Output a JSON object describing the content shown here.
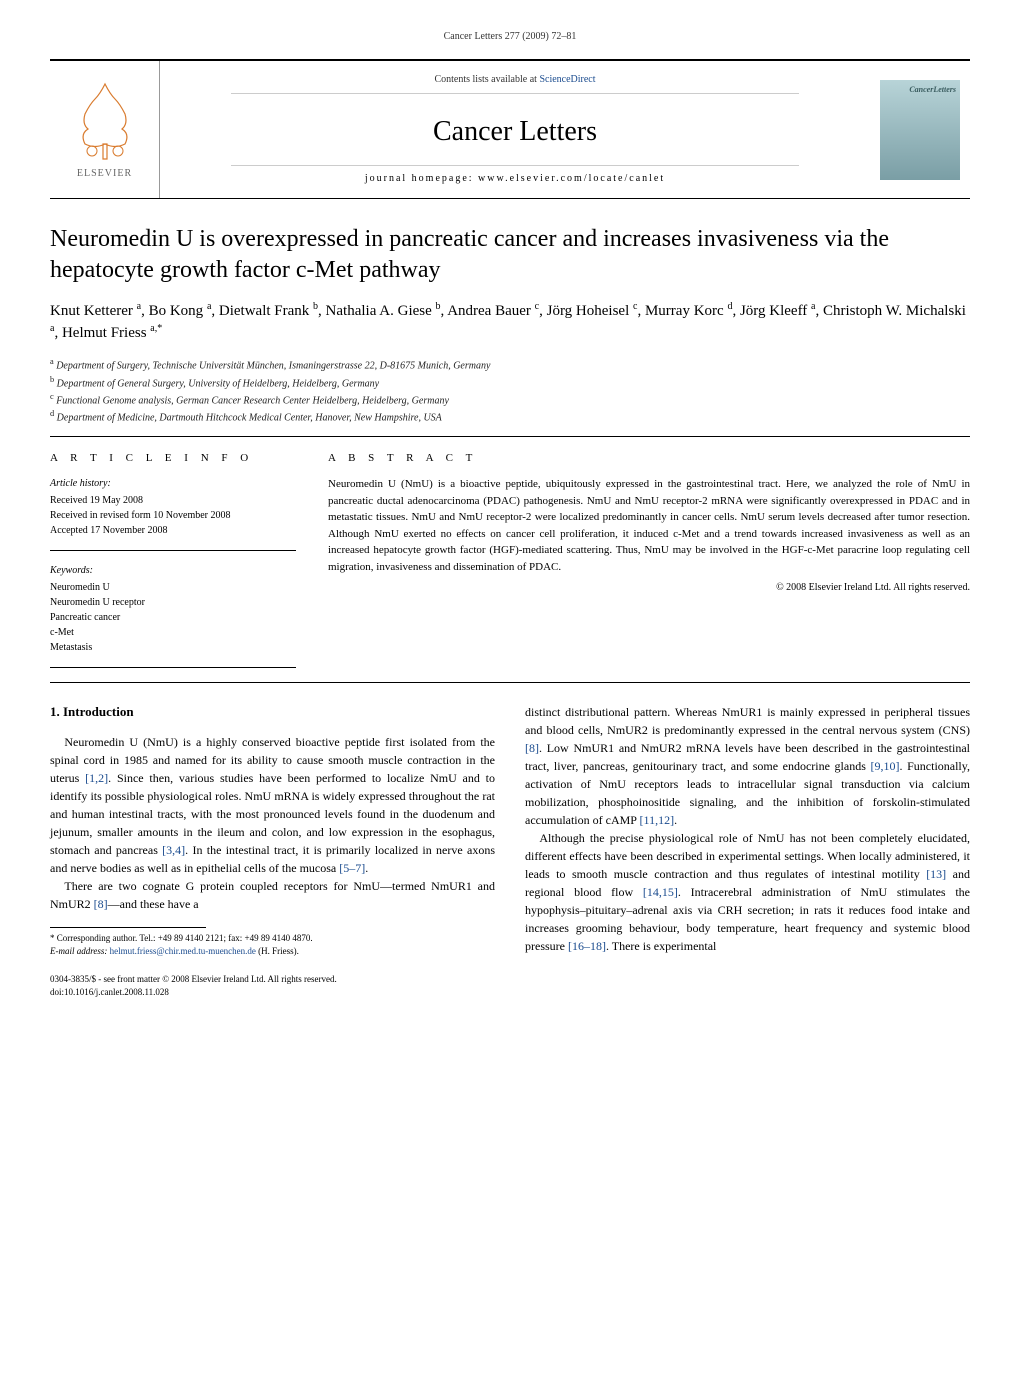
{
  "runningHeader": "Cancer Letters 277 (2009) 72–81",
  "header": {
    "contentsPrefix": "Contents lists available at ",
    "contentsLinkText": "ScienceDirect",
    "journalName": "Cancer Letters",
    "homepageLabel": "journal homepage: www.elsevier.com/locate/canlet",
    "publisherText": "ELSEVIER",
    "coverLabel": "CancerLetters"
  },
  "title": "Neuromedin U is overexpressed in pancreatic cancer and increases invasiveness via the hepatocyte growth factor c-Met pathway",
  "authorsHtml": "Knut Ketterer <sup>a</sup>, Bo Kong <sup>a</sup>, Dietwalt Frank <sup>b</sup>, Nathalia A. Giese <sup>b</sup>, Andrea Bauer <sup>c</sup>, Jörg Hoheisel <sup>c</sup>, Murray Korc <sup>d</sup>, Jörg Kleeff <sup>a</sup>, Christoph W. Michalski <sup>a</sup>, Helmut Friess <sup>a,*</sup>",
  "affiliations": {
    "a": "Department of Surgery, Technische Universität München, Ismaningerstrasse 22, D-81675 Munich, Germany",
    "b": "Department of General Surgery, University of Heidelberg, Heidelberg, Germany",
    "c": "Functional Genome analysis, German Cancer Research Center Heidelberg, Heidelberg, Germany",
    "d": "Department of Medicine, Dartmouth Hitchcock Medical Center, Hanover, New Hampshire, USA"
  },
  "articleInfo": {
    "label": "A R T I C L E   I N F O",
    "historyTitle": "Article history:",
    "received": "Received 19 May 2008",
    "revised": "Received in revised form 10 November 2008",
    "accepted": "Accepted 17 November 2008",
    "keywordsTitle": "Keywords:",
    "keywords": [
      "Neuromedin U",
      "Neuromedin U receptor",
      "Pancreatic cancer",
      "c-Met",
      "Metastasis"
    ]
  },
  "abstract": {
    "label": "A B S T R A C T",
    "text": "Neuromedin U (NmU) is a bioactive peptide, ubiquitously expressed in the gastrointestinal tract. Here, we analyzed the role of NmU in pancreatic ductal adenocarcinoma (PDAC) pathogenesis. NmU and NmU receptor-2 mRNA were significantly overexpressed in PDAC and in metastatic tissues. NmU and NmU receptor-2 were localized predominantly in cancer cells. NmU serum levels decreased after tumor resection. Although NmU exerted no effects on cancer cell proliferation, it induced c-Met and a trend towards increased invasiveness as well as an increased hepatocyte growth factor (HGF)-mediated scattering. Thus, NmU may be involved in the HGF-c-Met paracrine loop regulating cell migration, invasiveness and dissemination of PDAC.",
    "copyright": "© 2008 Elsevier Ireland Ltd. All rights reserved."
  },
  "introHeading": "1. Introduction",
  "col1": {
    "p1": "Neuromedin U (NmU) is a highly conserved bioactive peptide first isolated from the spinal cord in 1985 and named for its ability to cause smooth muscle contraction in the uterus [1,2]. Since then, various studies have been performed to localize NmU and to identify its possible physiological roles. NmU mRNA is widely expressed throughout the rat and human intestinal tracts, with the most pronounced levels found in the duodenum and jejunum, smaller amounts in the ileum and colon, and low expression in the esophagus, stomach and pancreas [3,4]. In the intestinal tract, it is primarily localized in nerve axons and nerve bodies as well as in epithelial cells of the mucosa [5–7].",
    "p2": "There are two cognate G protein coupled receptors for NmU—termed NmUR1 and NmUR2 [8]—and these have a",
    "footnoteLabel": "* Corresponding author. Tel.: +49 89 4140 2121; fax: +49 89 4140 4870.",
    "footnoteEmailLabel": "E-mail address: ",
    "footnoteEmail": "helmut.friess@chir.med.tu-muenchen.de",
    "footnoteEmailSuffix": " (H. Friess).",
    "footerLine1": "0304-3835/$ - see front matter © 2008 Elsevier Ireland Ltd. All rights reserved.",
    "footerLine2": "doi:10.1016/j.canlet.2008.11.028"
  },
  "col2": {
    "p1": "distinct distributional pattern. Whereas NmUR1 is mainly expressed in peripheral tissues and blood cells, NmUR2 is predominantly expressed in the central nervous system (CNS) [8]. Low NmUR1 and NmUR2 mRNA levels have been described in the gastrointestinal tract, liver, pancreas, genitourinary tract, and some endocrine glands [9,10]. Functionally, activation of NmU receptors leads to intracellular signal transduction via calcium mobilization, phosphoinositide signaling, and the inhibition of forskolin-stimulated accumulation of cAMP [11,12].",
    "p2": "Although the precise physiological role of NmU has not been completely elucidated, different effects have been described in experimental settings. When locally administered, it leads to smooth muscle contraction and thus regulates of intestinal motility [13] and regional blood flow [14,15]. Intracerebral administration of NmU stimulates the hypophysis–pituitary–adrenal axis via CRH secretion; in rats it reduces food intake and increases grooming behaviour, body temperature, heart frequency and systemic blood pressure [16–18]. There is experimental"
  },
  "refs": {
    "r12": "[1,2]",
    "r34": "[3,4]",
    "r57": "[5–7]",
    "r8a": "[8]",
    "r8b": "[8]",
    "r910": "[9,10]",
    "r1112": "[11,12]",
    "r13": "[13]",
    "r1415": "[14,15]",
    "r1618": "[16–18]"
  }
}
